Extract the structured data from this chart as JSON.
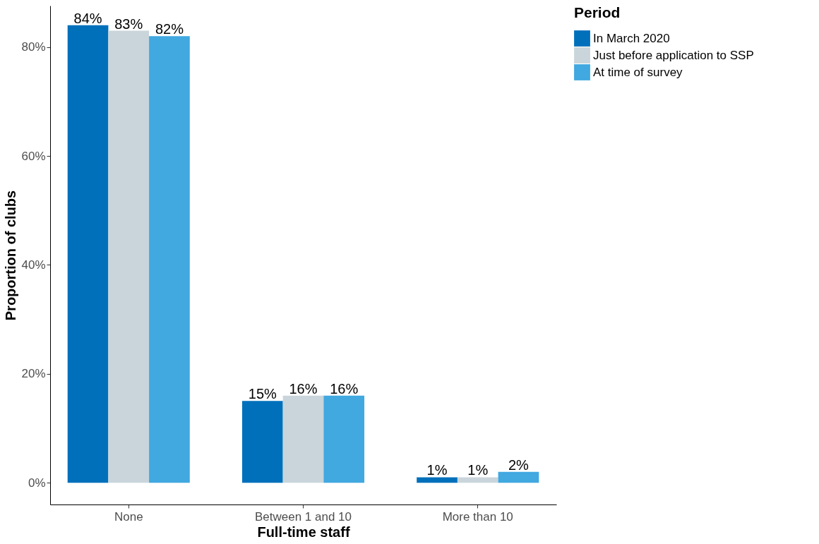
{
  "chart_data": {
    "type": "bar",
    "xlabel": "Full-time staff",
    "ylabel": "Proportion of clubs",
    "legend_title": "Period",
    "categories": [
      "None",
      "Between 1 and 10",
      "More than 10"
    ],
    "series": [
      {
        "name": "In March 2020",
        "color": "#0070bb",
        "values": [
          84,
          15,
          1
        ],
        "value_labels": [
          "84%",
          "15%",
          "1%"
        ]
      },
      {
        "name": "Just before application to SSP",
        "color": "#c9d5da",
        "values": [
          83,
          16,
          1
        ],
        "value_labels": [
          "83%",
          "16%",
          "1%"
        ]
      },
      {
        "name": "At time of survey",
        "color": "#41a8e0",
        "values": [
          82,
          16,
          2
        ],
        "value_labels": [
          "82%",
          "16%",
          "2%"
        ]
      }
    ],
    "ylim": [
      -4,
      87.6
    ],
    "yticks": [
      {
        "value": 0,
        "label": "0%"
      },
      {
        "value": 20,
        "label": "20%"
      },
      {
        "value": 40,
        "label": "40%"
      },
      {
        "value": 60,
        "label": "60%"
      },
      {
        "value": 80,
        "label": "80%"
      }
    ],
    "grid": false,
    "legend": "right"
  }
}
